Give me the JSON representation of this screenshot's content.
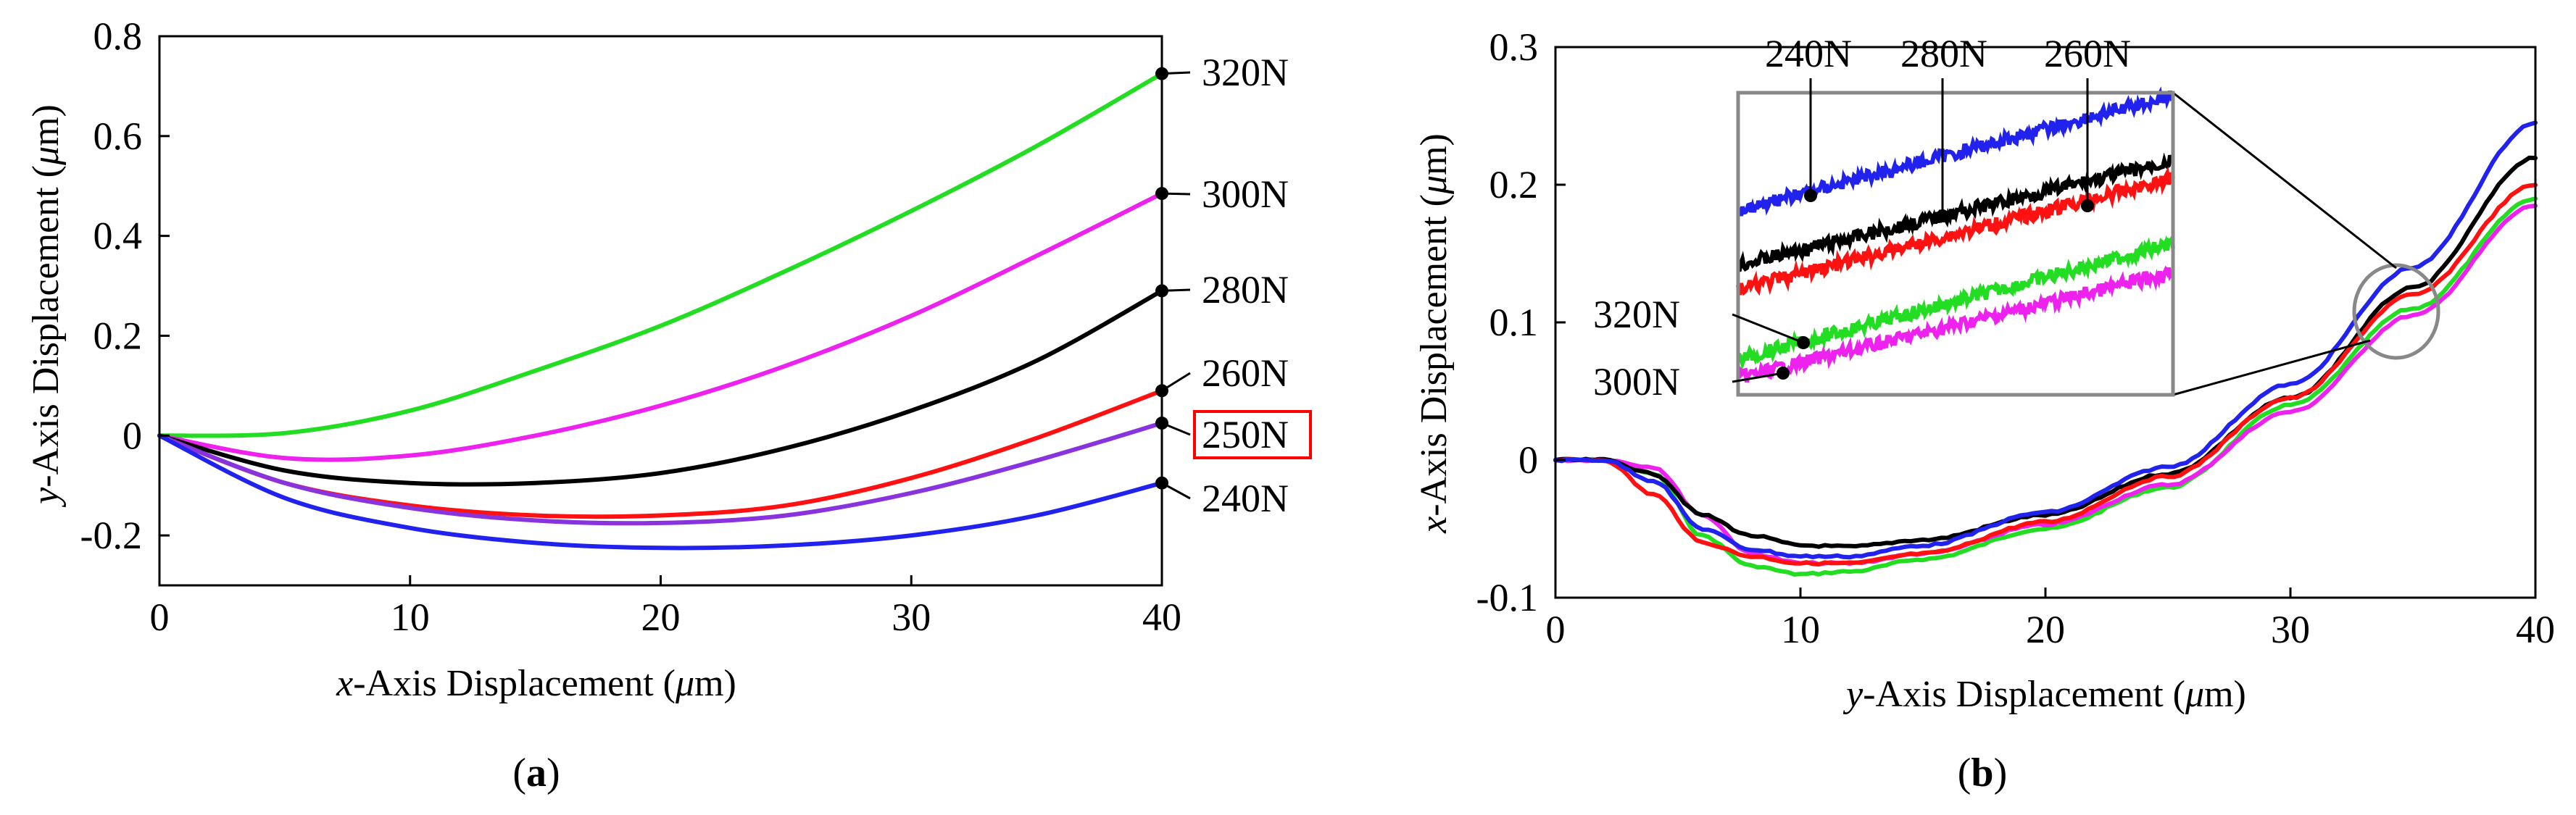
{
  "chart_data": [
    {
      "type": "line",
      "panel": "a",
      "xlabel_prefix": "x",
      "xlabel_rest": "-Axis Displacement (",
      "xlabel_unit": "μ",
      "xlabel_end": "m)",
      "ylabel_prefix": "y",
      "ylabel_rest": "-Axis Displacement (",
      "ylabel_unit": "μ",
      "ylabel_end": "m)",
      "xlim": [
        0,
        40
      ],
      "ylim": [
        -0.3,
        0.8
      ],
      "xticks": [
        "0",
        "10",
        "20",
        "30",
        "40"
      ],
      "yticks": [
        "-0.2",
        "0",
        "0.2",
        "0.4",
        "0.6",
        "0.8"
      ],
      "ytick_values": [
        -0.2,
        0,
        0.2,
        0.4,
        0.6,
        0.8
      ],
      "xtick_values": [
        0,
        10,
        20,
        30,
        40
      ],
      "highlighted_label": "250N",
      "series": [
        {
          "name": "320N",
          "color": "#22dd22",
          "x": [
            0,
            5,
            10,
            15,
            20,
            25,
            30,
            35,
            40
          ],
          "y": [
            0,
            0.005,
            0.05,
            0.13,
            0.22,
            0.33,
            0.45,
            0.58,
            0.725
          ]
        },
        {
          "name": "300N",
          "color": "#ee22ee",
          "x": [
            0,
            5,
            10,
            15,
            20,
            25,
            30,
            35,
            40
          ],
          "y": [
            0,
            -0.045,
            -0.04,
            0.0,
            0.06,
            0.14,
            0.24,
            0.36,
            0.485
          ]
        },
        {
          "name": "280N",
          "color": "#000000",
          "x": [
            0,
            5,
            10,
            15,
            20,
            25,
            30,
            35,
            40
          ],
          "y": [
            0,
            -0.07,
            -0.095,
            -0.095,
            -0.075,
            -0.025,
            0.05,
            0.15,
            0.29
          ]
        },
        {
          "name": "260N",
          "color": "#ff1111",
          "x": [
            0,
            5,
            10,
            15,
            20,
            25,
            30,
            35,
            40
          ],
          "y": [
            0,
            -0.095,
            -0.14,
            -0.16,
            -0.16,
            -0.14,
            -0.085,
            -0.005,
            0.09
          ]
        },
        {
          "name": "250N",
          "color": "#8833dd",
          "x": [
            0,
            5,
            10,
            15,
            20,
            25,
            30,
            35,
            40
          ],
          "y": [
            0,
            -0.095,
            -0.145,
            -0.17,
            -0.175,
            -0.16,
            -0.115,
            -0.05,
            0.025
          ]
        },
        {
          "name": "240N",
          "color": "#2222ee",
          "x": [
            0,
            5,
            10,
            15,
            20,
            25,
            30,
            35,
            40
          ],
          "y": [
            0,
            -0.125,
            -0.185,
            -0.215,
            -0.225,
            -0.22,
            -0.2,
            -0.16,
            -0.095
          ]
        }
      ],
      "label_order": [
        "320N",
        "300N",
        "280N",
        "260N",
        "250N",
        "240N"
      ]
    },
    {
      "type": "line",
      "panel": "b",
      "xlabel_prefix": "y",
      "xlabel_rest": "-Axis Displacement (",
      "xlabel_unit": "μ",
      "xlabel_end": "m)",
      "ylabel_prefix": "x",
      "ylabel_rest": "-Axis Displacement (",
      "ylabel_unit": "μ",
      "ylabel_end": "m)",
      "xlim": [
        0,
        40
      ],
      "ylim": [
        -0.1,
        0.3
      ],
      "xticks": [
        "0",
        "10",
        "20",
        "30",
        "40"
      ],
      "yticks": [
        "-0.1",
        "0",
        "0.1",
        "0.2",
        "0.3"
      ],
      "ytick_values": [
        -0.1,
        0,
        0.1,
        0.2,
        0.3
      ],
      "xtick_values": [
        0,
        10,
        20,
        30,
        40
      ],
      "series": [
        {
          "name": "320N",
          "color": "#22dd22",
          "x": [
            0,
            2,
            4,
            6,
            8,
            10,
            12,
            15,
            20,
            25,
            30,
            35,
            40
          ],
          "y": [
            0,
            0,
            -0.01,
            -0.055,
            -0.077,
            -0.083,
            -0.081,
            -0.072,
            -0.05,
            -0.02,
            0.04,
            0.11,
            0.19
          ]
        },
        {
          "name": "300N",
          "color": "#ee22ee",
          "x": [
            0,
            2,
            4,
            6,
            8,
            10,
            12,
            15,
            20,
            25,
            30,
            35,
            40
          ],
          "y": [
            0,
            0,
            -0.005,
            -0.04,
            -0.068,
            -0.075,
            -0.075,
            -0.068,
            -0.047,
            -0.018,
            0.035,
            0.105,
            0.185
          ]
        },
        {
          "name": "280N",
          "color": "#000000",
          "x": [
            0,
            2,
            4,
            6,
            8,
            10,
            12,
            15,
            20,
            25,
            30,
            35,
            40
          ],
          "y": [
            0,
            0,
            -0.01,
            -0.04,
            -0.055,
            -0.062,
            -0.063,
            -0.058,
            -0.04,
            -0.01,
            0.045,
            0.125,
            0.22
          ]
        },
        {
          "name": "260N",
          "color": "#ff1111",
          "x": [
            0,
            2,
            4,
            6,
            8,
            10,
            12,
            15,
            20,
            25,
            30,
            35,
            40
          ],
          "y": [
            0,
            0,
            -0.025,
            -0.06,
            -0.07,
            -0.075,
            -0.075,
            -0.068,
            -0.045,
            -0.012,
            0.045,
            0.12,
            0.2
          ]
        },
        {
          "name": "240N",
          "color": "#2222ee",
          "x": [
            0,
            2,
            4,
            6,
            8,
            10,
            12,
            15,
            20,
            25,
            30,
            35,
            40
          ],
          "y": [
            0,
            0,
            -0.015,
            -0.05,
            -0.065,
            -0.07,
            -0.07,
            -0.062,
            -0.038,
            -0.005,
            0.055,
            0.14,
            0.245
          ]
        }
      ],
      "inset_labels_top": [
        "240N",
        "280N",
        "260N"
      ],
      "inset_labels_left": [
        "320N",
        "300N"
      ]
    }
  ],
  "panels": {
    "a": {
      "open": "(",
      "letter": "a",
      "close": ")"
    },
    "b": {
      "open": "(",
      "letter": "b",
      "close": ")"
    }
  },
  "inset": {
    "top_label_targets": [
      "240N",
      "280N",
      "260N"
    ],
    "left_label_targets": [
      "320N",
      "300N"
    ]
  }
}
